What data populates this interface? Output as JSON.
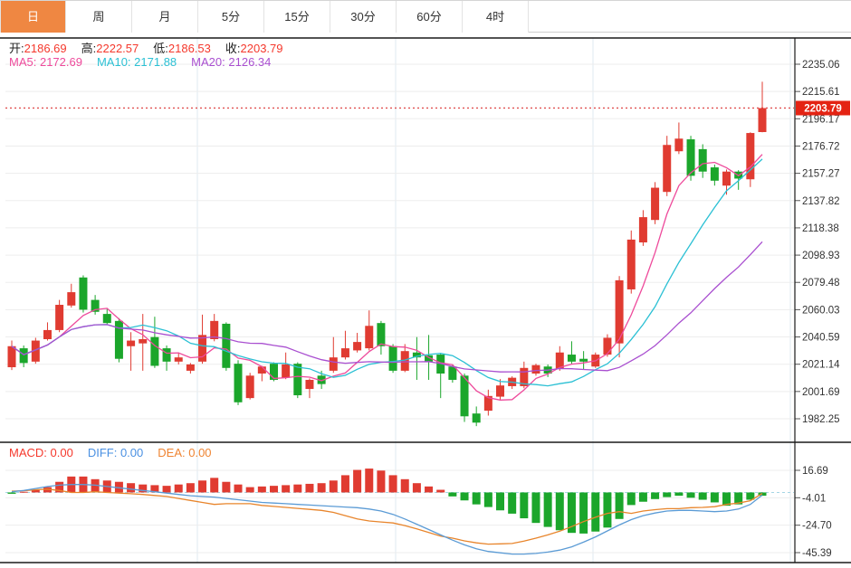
{
  "tabs": {
    "items": [
      {
        "label": "日",
        "active": true
      },
      {
        "label": "周",
        "active": false
      },
      {
        "label": "月",
        "active": false
      },
      {
        "label": "5分",
        "active": false
      },
      {
        "label": "15分",
        "active": false
      },
      {
        "label": "30分",
        "active": false
      },
      {
        "label": "60分",
        "active": false
      },
      {
        "label": "4时",
        "active": false
      }
    ]
  },
  "info": {
    "open_label": "开:",
    "open": "2186.69",
    "high_label": "高:",
    "high": "2222.57",
    "low_label": "低:",
    "low": "2186.53",
    "close_label": "收:",
    "close": "2203.79",
    "ma5_label": "MA5:",
    "ma5": "2172.69",
    "ma10_label": "MA10:",
    "ma10": "2171.88",
    "ma20_label": "MA20:",
    "ma20": "2126.34"
  },
  "macd_info": {
    "macd_label": "MACD:",
    "macd": "0.00",
    "diff_label": "DIFF:",
    "diff": "0.00",
    "dea_label": "DEA:",
    "dea": "0.00"
  },
  "colors": {
    "up": "#e03b31",
    "down": "#1ba62b",
    "tab_active_bg": "#ef8742",
    "value_red": "#f5382c",
    "ma5": "#ee4a9b",
    "ma10": "#2bc0d4",
    "ma20": "#a94fd0",
    "diff_line": "#5b9bd5",
    "dea_line": "#e8852c",
    "price_marker_bg": "#e42313",
    "grid_h": "#ededed",
    "grid_v": "#dfe9f0",
    "zero_dash": "#a5d5e5",
    "frame": "#1a1a1a",
    "axis_text": "#333333",
    "dotted_price_line": "#e05050"
  },
  "chart_data": {
    "type": "candlestick",
    "title": "",
    "legend_position": "top-left-overlay",
    "grid": true,
    "panels": [
      {
        "name": "price",
        "y_axis_labels": [
          "2235.06",
          "2215.61",
          "2196.17",
          "2176.72",
          "2157.27",
          "2137.82",
          "2118.38",
          "2098.93",
          "2079.48",
          "2060.03",
          "2040.59",
          "2021.14",
          "2001.69",
          "1982.25"
        ],
        "axis_top_value": 2235.06,
        "axis_bottom_value": 1982.25,
        "price_marker": "2203.79",
        "price_marker_value": 2203.79,
        "ma_periods": [
          5,
          10,
          20
        ],
        "candles": [
          [
            2019.0,
            2038.0,
            2017.0,
            2034.0
          ],
          [
            2032.5,
            2034.5,
            2019.0,
            2022.0
          ],
          [
            2023.0,
            2040.0,
            2021.5,
            2038.0
          ],
          [
            2039.0,
            2051.0,
            2038.0,
            2045.5
          ],
          [
            2045.5,
            2067.0,
            2044.0,
            2063.5
          ],
          [
            2063.0,
            2078.5,
            2061.5,
            2072.5
          ],
          [
            2083.0,
            2084.5,
            2058.0,
            2060.0
          ],
          [
            2067.0,
            2070.5,
            2056.5,
            2058.5
          ],
          [
            2057.0,
            2060.5,
            2049.0,
            2050.5
          ],
          [
            2052.0,
            2054.0,
            2022.5,
            2025.0
          ],
          [
            2034.0,
            2044.0,
            2016.5,
            2038.0
          ],
          [
            2036.0,
            2057.0,
            2016.5,
            2039.0
          ],
          [
            2040.5,
            2055.0,
            2018.5,
            2020.0
          ],
          [
            2032.5,
            2034.5,
            2016.5,
            2023.0
          ],
          [
            2023.0,
            2029.5,
            2021.0,
            2026.0
          ],
          [
            2016.5,
            2022.0,
            2014.5,
            2021.0
          ],
          [
            2023.0,
            2056.5,
            2021.5,
            2042.0
          ],
          [
            2039.0,
            2057.0,
            2037.5,
            2052.0
          ],
          [
            2050.0,
            2051.0,
            2016.5,
            2018.5
          ],
          [
            2021.5,
            2024.0,
            1992.0,
            1994.0
          ],
          [
            1997.0,
            2015.0,
            1996.0,
            2013.0
          ],
          [
            2014.5,
            2020.0,
            2009.0,
            2019.5
          ],
          [
            2021.5,
            2022.5,
            2009.0,
            2010.0
          ],
          [
            2011.5,
            2029.5,
            2010.5,
            2021.0
          ],
          [
            2021.5,
            2022.5,
            1997.0,
            1999.0
          ],
          [
            2003.5,
            2011.0,
            1997.0,
            2010.0
          ],
          [
            2013.0,
            2016.5,
            2003.5,
            2007.0
          ],
          [
            2016.5,
            2040.5,
            2015.0,
            2026.0
          ],
          [
            2026.0,
            2045.0,
            2024.5,
            2032.5
          ],
          [
            2031.0,
            2043.5,
            2029.5,
            2037.0
          ],
          [
            2032.5,
            2059.5,
            2031.0,
            2048.5
          ],
          [
            2050.5,
            2052.0,
            2028.0,
            2034.0
          ],
          [
            2034.0,
            2035.5,
            2015.0,
            2016.5
          ],
          [
            2016.5,
            2035.5,
            2015.5,
            2030.5
          ],
          [
            2029.5,
            2040.5,
            2010.0,
            2026.0
          ],
          [
            2027.5,
            2042.0,
            2010.0,
            2023.0
          ],
          [
            2028.0,
            2029.0,
            1997.0,
            2014.5
          ],
          [
            2019.5,
            2021.0,
            2008.0,
            2010.0
          ],
          [
            2013.0,
            2014.5,
            1980.0,
            1984.0
          ],
          [
            1986.0,
            1991.0,
            1977.0,
            1979.5
          ],
          [
            1988.0,
            2003.0,
            1984.5,
            1998.5
          ],
          [
            1998.0,
            2010.5,
            1996.0,
            2006.0
          ],
          [
            2005.5,
            2012.5,
            2003.5,
            2011.5
          ],
          [
            2005.5,
            2023.0,
            2004.0,
            2018.5
          ],
          [
            2014.5,
            2021.5,
            2013.0,
            2020.5
          ],
          [
            2019.5,
            2021.0,
            2012.0,
            2014.5
          ],
          [
            2018.0,
            2034.0,
            2016.5,
            2029.5
          ],
          [
            2028.0,
            2037.5,
            2021.5,
            2023.0
          ],
          [
            2025.0,
            2030.5,
            2017.5,
            2023.0
          ],
          [
            2019.5,
            2029.5,
            2018.5,
            2028.0
          ],
          [
            2028.0,
            2042.5,
            2026.5,
            2040.0
          ],
          [
            2036.0,
            2084.0,
            2026.0,
            2081.0
          ],
          [
            2074.5,
            2116.5,
            2071.5,
            2110.0
          ],
          [
            2108.0,
            2131.0,
            2105.5,
            2126.0
          ],
          [
            2124.0,
            2151.0,
            2121.0,
            2147.0
          ],
          [
            2144.0,
            2184.0,
            2141.0,
            2177.5
          ],
          [
            2173.0,
            2193.5,
            2171.0,
            2182.0
          ],
          [
            2181.5,
            2184.0,
            2152.0,
            2155.5
          ],
          [
            2174.5,
            2178.0,
            2154.0,
            2158.5
          ],
          [
            2161.5,
            2163.5,
            2148.5,
            2152.0
          ],
          [
            2148.5,
            2160.0,
            2142.0,
            2158.5
          ],
          [
            2158.5,
            2159.5,
            2145.5,
            2153.5
          ],
          [
            2153.0,
            2186.5,
            2147.5,
            2186.0
          ],
          [
            2186.69,
            2222.57,
            2186.53,
            2203.79
          ]
        ]
      },
      {
        "name": "macd",
        "y_axis_labels": [
          "16.69",
          "-4.01",
          "-24.70",
          "-45.39"
        ],
        "axis_top_value": 16.69,
        "axis_bottom_value": -45.39,
        "histogram": [
          -1,
          0.5,
          2,
          4,
          8,
          12,
          12,
          10,
          9,
          8,
          7,
          6,
          5.5,
          5,
          6,
          7,
          9,
          11,
          8,
          6,
          4,
          4.5,
          5,
          5.5,
          6,
          6.5,
          7,
          9,
          13,
          17,
          18,
          16.5,
          13,
          10,
          7,
          4.5,
          2,
          -3,
          -6,
          -9,
          -11,
          -13.5,
          -16,
          -19.5,
          -23,
          -26,
          -28.5,
          -30.5,
          -31,
          -29.5,
          -26.5,
          -20,
          -9.5,
          -7,
          -5,
          -3.5,
          -2.5,
          -4,
          -5.5,
          -7.5,
          -10,
          -9,
          -5.5,
          -2.5
        ],
        "diff": [
          0.5,
          1.5,
          3,
          4.5,
          5.5,
          6,
          6,
          5.5,
          4.5,
          3.5,
          2.5,
          1.5,
          0.5,
          -0.5,
          -1.5,
          -2.5,
          -3,
          -3.5,
          -4.5,
          -5.5,
          -6.5,
          -7.5,
          -8,
          -8.5,
          -9,
          -9.5,
          -10,
          -10.5,
          -11,
          -11.5,
          -12.5,
          -14,
          -16.5,
          -20,
          -24,
          -28,
          -32,
          -36,
          -39.5,
          -42.5,
          -44.5,
          -45.5,
          -46.5,
          -46.5,
          -46,
          -45,
          -43.5,
          -41,
          -37.5,
          -33.5,
          -29,
          -24.5,
          -20.5,
          -17.5,
          -15.5,
          -14,
          -13.5,
          -13.5,
          -14,
          -14.5,
          -14,
          -12.5,
          -9,
          -2
        ]
      }
    ]
  }
}
